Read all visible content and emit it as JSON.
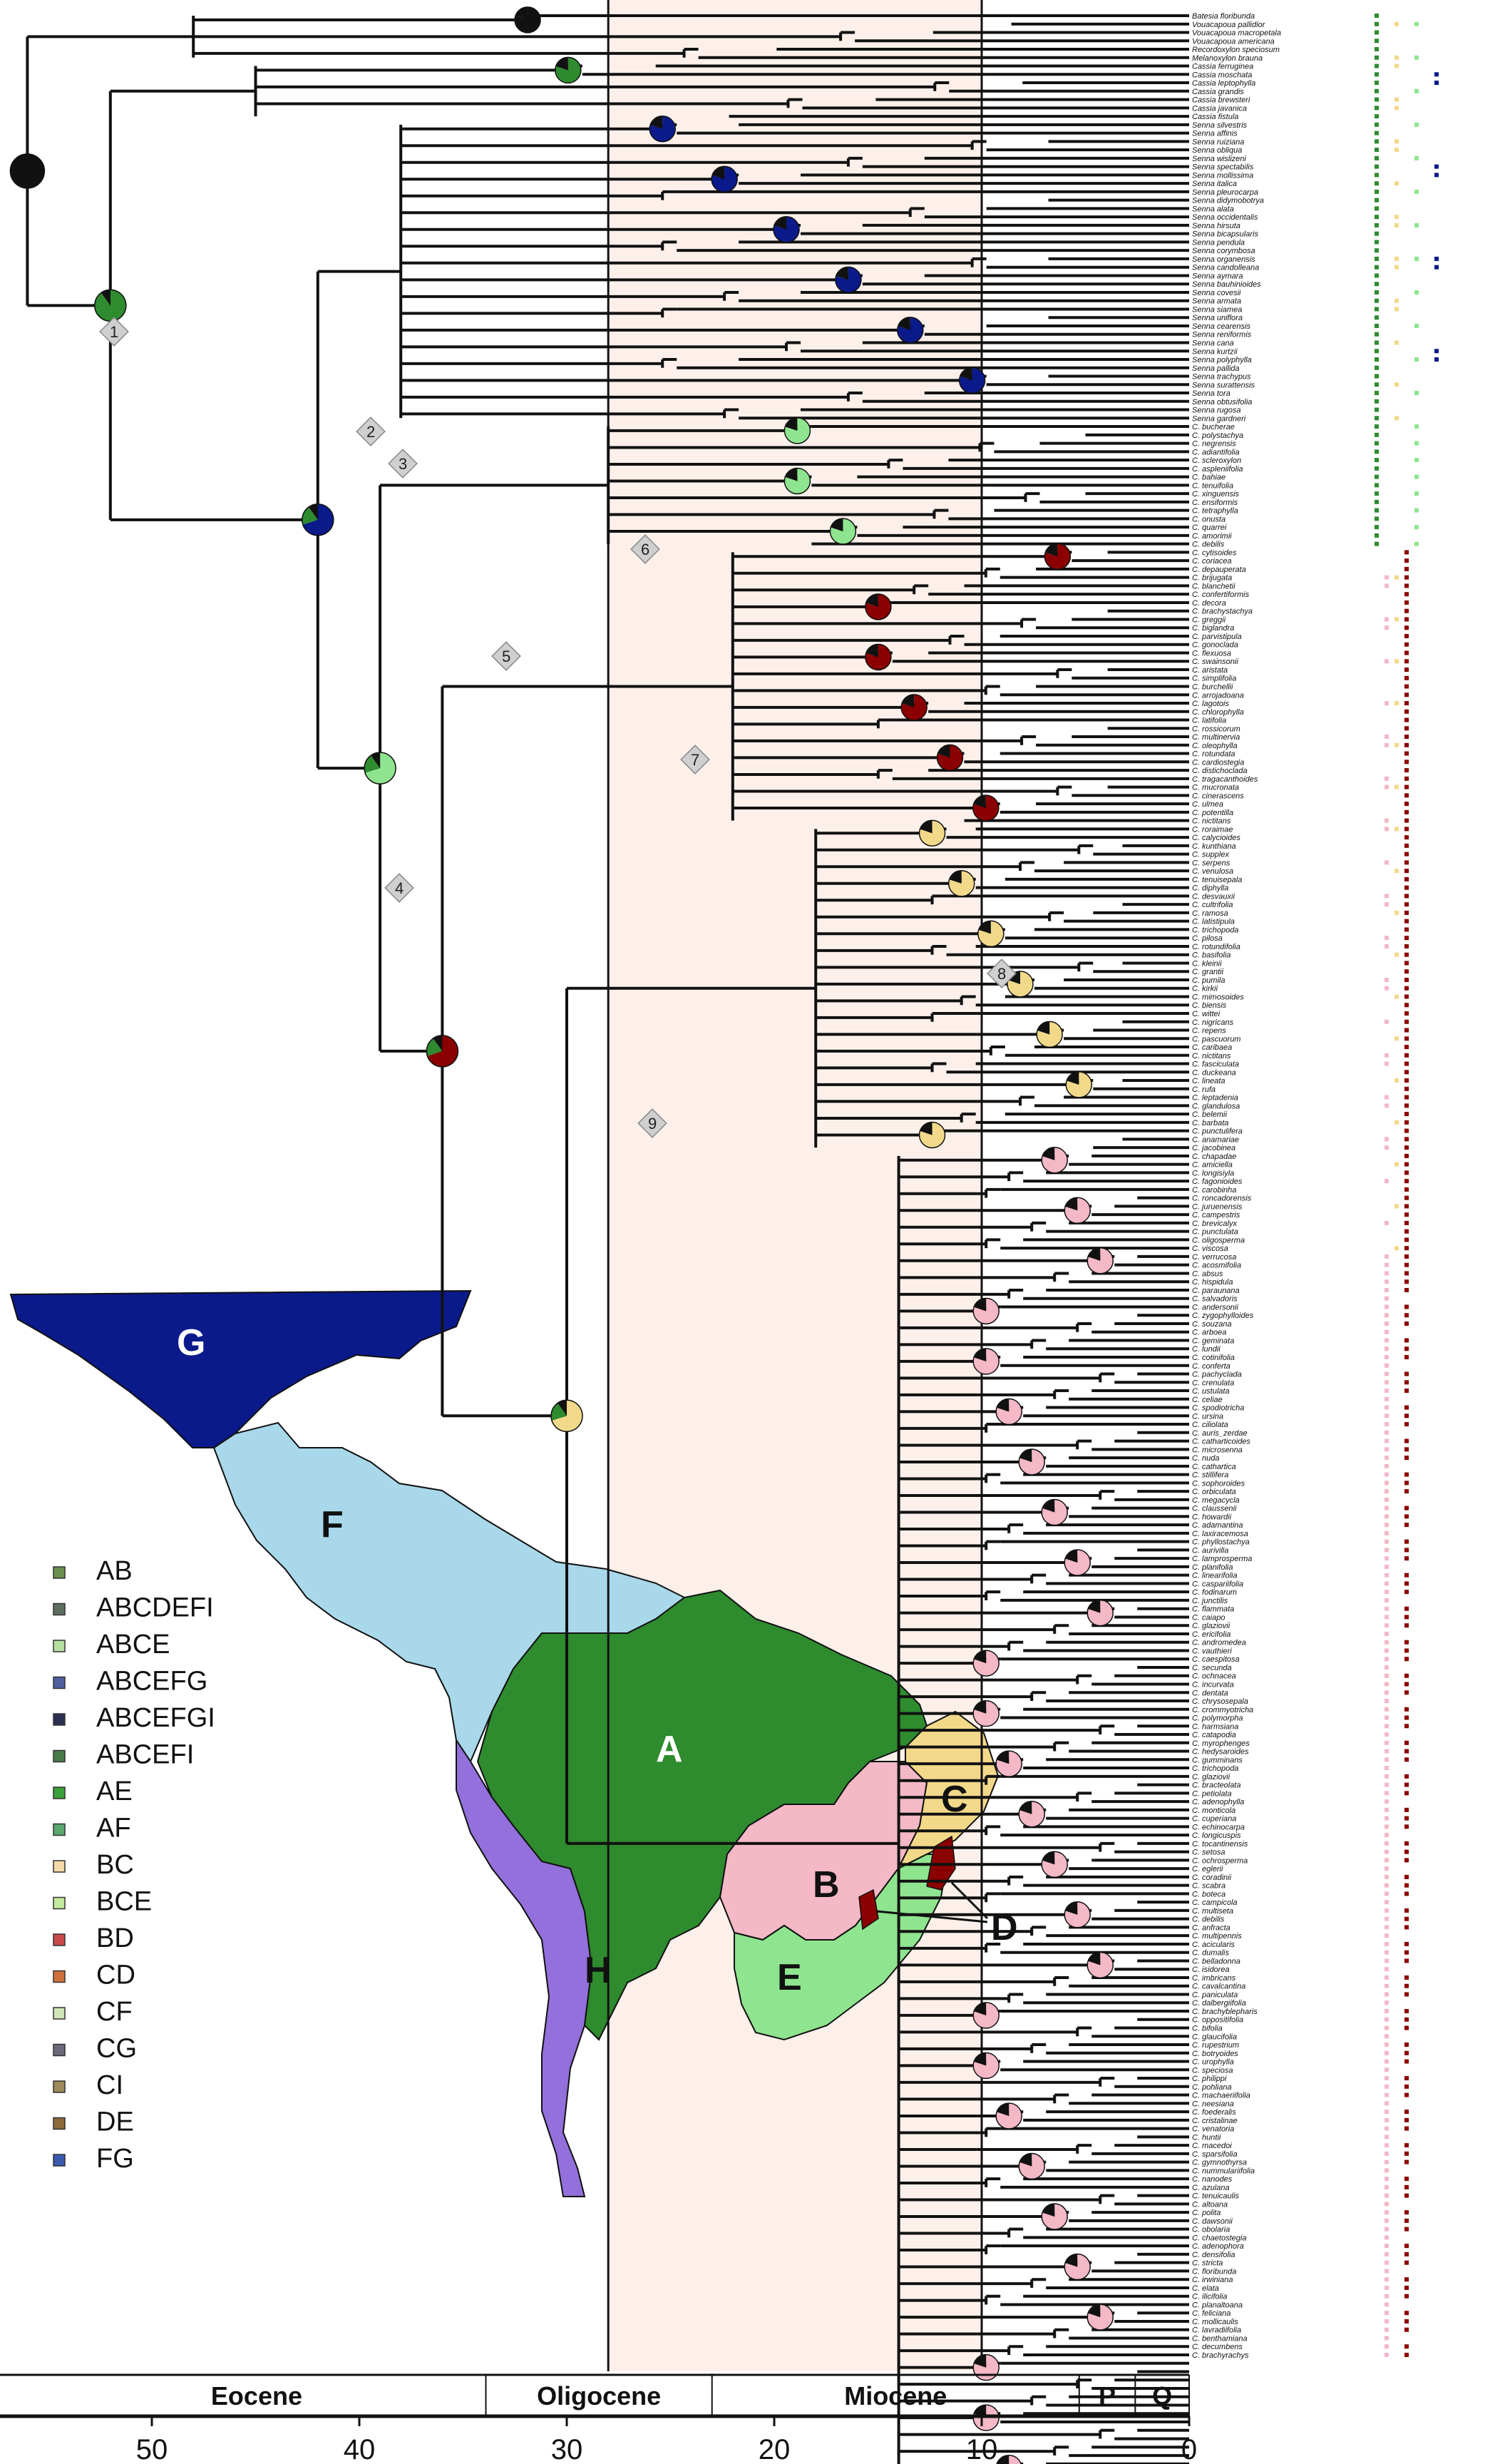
{
  "colors": {
    "A": "#2e8b2e",
    "B": "#f4b8c6",
    "C": "#f2d98a",
    "D": "#8b0000",
    "E": "#8fe58f",
    "F": "#a8d8ea",
    "G": "#0a1a8a",
    "H": "#9370db",
    "grey": "#3a3a3a",
    "black": "#111111",
    "band": "#fdf0ea"
  },
  "time_axis": {
    "ticks": [
      "50",
      "40",
      "30",
      "20",
      "10",
      "0"
    ],
    "epochs": [
      "Eocene",
      "Oligocene",
      "Miocene",
      "P",
      "Q"
    ]
  },
  "node_labels": [
    "1",
    "2",
    "3",
    "4",
    "5",
    "6",
    "7",
    "8",
    "9"
  ],
  "map": {
    "regions": [
      "A",
      "B",
      "C",
      "D",
      "E",
      "F",
      "G",
      "H"
    ]
  },
  "legend": [
    {
      "label": "AB",
      "color": "#6b8f4e"
    },
    {
      "label": "ABCDEFI",
      "color": "#5e6e5e"
    },
    {
      "label": "ABCE",
      "color": "#b6e0a0"
    },
    {
      "label": "ABCEFG",
      "color": "#4f5fa0"
    },
    {
      "label": "ABCEFGI",
      "color": "#2a3050"
    },
    {
      "label": "ABCEFI",
      "color": "#4a7a4a"
    },
    {
      "label": "AE",
      "color": "#3aa03a"
    },
    {
      "label": "AF",
      "color": "#5aa870"
    },
    {
      "label": "BC",
      "color": "#f6d9a8"
    },
    {
      "label": "BCE",
      "color": "#c2ea9a"
    },
    {
      "label": "BD",
      "color": "#c84a4a"
    },
    {
      "label": "CD",
      "color": "#d0703a"
    },
    {
      "label": "CF",
      "color": "#cfe6b8"
    },
    {
      "label": "CG",
      "color": "#6a6a7a"
    },
    {
      "label": "CI",
      "color": "#9c8a5a"
    },
    {
      "label": "DE",
      "color": "#8a6a3a"
    },
    {
      "label": "FG",
      "color": "#3a5ab0"
    }
  ],
  "tips": [
    "Batesia floribunda",
    "Vouacapoua pallidior",
    "Vouacapoua macropetala",
    "Vouacapoua americana",
    "Recordoxylon speciosum",
    "Melanoxylon brauna",
    "Cassia ferruginea",
    "Cassia moschata",
    "Cassia leptophylla",
    "Cassia grandis",
    "Cassia brewsteri",
    "Cassia javanica",
    "Cassia fistula",
    "Senna silvestris",
    "Senna affinis",
    "Senna ruiziana",
    "Senna obliqua",
    "Senna wislizeni",
    "Senna spectabilis",
    "Senna mollissima",
    "Senna italica",
    "Senna pleurocarpa",
    "Senna didymobotrya",
    "Senna alata",
    "Senna occidentalis",
    "Senna hirsuta",
    "Senna bicapsularis",
    "Senna pendula",
    "Senna corymbosa",
    "Senna organensis",
    "Senna candolleana",
    "Senna aymara",
    "Senna bauhinioides",
    "Senna covesii",
    "Senna armata",
    "Senna siamea",
    "Senna uniflora",
    "Senna cearensis",
    "Senna reniformis",
    "Senna cana",
    "Senna kurtzii",
    "Senna polyphylla",
    "Senna pallida",
    "Senna trachypus",
    "Senna surattensis",
    "Senna tora",
    "Senna obtusifolia",
    "Senna rugosa",
    "Senna gardneri",
    "C. bucherae",
    "C. polystachya",
    "C. negrensis",
    "C. adiantifolia",
    "C. scleroxylon",
    "C. aspleniifolia",
    "C. bahiae",
    "C. tenuifolia",
    "C. xinguensis",
    "C. ensiformis",
    "C. tetraphylla",
    "C. onusta",
    "C. quarrei",
    "C. amorimii",
    "C. debilis",
    "C. cytisoides",
    "C. coriacea",
    "C. depauperata",
    "C. brijugata",
    "C. blanchetii",
    "C. confertiformis",
    "C. decora",
    "C. brachystachya",
    "C. greggii",
    "C. biglandra",
    "C. parvistipula",
    "C. gonoclada",
    "C. flexuosa",
    "C. swainsonii",
    "C. aristata",
    "C. simplifolia",
    "C. burchellii",
    "C. arrojadoana",
    "C. lagotois",
    "C. chlorophylla",
    "C. latifolia",
    "C. rossicorum",
    "C. multinervia",
    "C. oleophylla",
    "C. rotundata",
    "C. cardiostegia",
    "C. distichoclada",
    "C. tragacanthoides",
    "C. mucronata",
    "C. cinerascens",
    "C. ulmea",
    "C. potentilla",
    "C. nictitans",
    "C. roraimae",
    "C. calycioides",
    "C. kunthiana",
    "C. supplex",
    "C. serpens",
    "C. venulosa",
    "C. tenuisepala",
    "C. diphylla",
    "C. desvauxii",
    "C. cultrifolia",
    "C. ramosa",
    "C. latistipula",
    "C. trichopoda",
    "C. pilosa",
    "C. rotundifolia",
    "C. basifolia",
    "C. kleinii",
    "C. grantii",
    "C. pumila",
    "C. kirkii",
    "C. mimosoides",
    "C. biensis",
    "C. wittei",
    "C. nigricans",
    "C. repens",
    "C. pascuorum",
    "C. caribaea",
    "C. nictitans",
    "C. fasciculata",
    "C. duckeana",
    "C. lineata",
    "C. rufa",
    "C. leptadenia",
    "C. glandulosa",
    "C. belemii",
    "C. barbata",
    "C. punctulifera",
    "C. anamariae",
    "C. jacobinea",
    "C. chapadae",
    "C. amiciella",
    "C. longisiyla",
    "C. fagonioides",
    "C. carobinha",
    "C. roncadorensis",
    "C. juruenensis",
    "C. campestris",
    "C. brevicalyx",
    "C. punctulata",
    "C. oligosperma",
    "C. viscosa",
    "C. verrucosa",
    "C. acosmifolia",
    "C. absus",
    "C. hispidula",
    "C. paraunana",
    "C. salvadoris",
    "C. andersonii",
    "C. zygophylloides",
    "C. souzana",
    "C. arboea",
    "C. geminata",
    "C. lundii",
    "C. cotinifolia",
    "C. conferta",
    "C. pachyclada",
    "C. crenulata",
    "C. ustulata",
    "C. celiae",
    "C. spodiotricha",
    "C. ursina",
    "C. ciliolata",
    "C. auris_zerdae",
    "C. catharticoides",
    "C. microsenna",
    "C. nuda",
    "C. cathartica",
    "C. stillifera",
    "C. sophoroides",
    "C. orbiculata",
    "C. megacycla",
    "C. claussenii",
    "C. howardii",
    "C. adamantina",
    "C. laxiracemosa",
    "C. phyllostachya",
    "C. aurivilla",
    "C. lamprosperma",
    "C. planifolia",
    "C. linearifolia",
    "C. caspariifolia",
    "C. fodinarum",
    "C. junctilis",
    "C. flammata",
    "C. caiapo",
    "C. glaziovii",
    "C. ericifolia",
    "C. andromedea",
    "C. vauthieri",
    "C. caespitosa",
    "C. secunda",
    "C. ochnacea",
    "C. incurvata",
    "C. dentata",
    "C. chrysosepala",
    "C. crommyotricha",
    "C. polymorpha",
    "C. harmsiana",
    "C. catapodia",
    "C. myrophenges",
    "C. hedysaroides",
    "C. gumminans",
    "C. trichopoda",
    "C. glaziovii",
    "C. bracteolata",
    "C. petiolata",
    "C. adenophylla",
    "C. monticola",
    "C. cuperiana",
    "C. echinocarpa",
    "C. longicuspis",
    "C. tocantinensis",
    "C. setosa",
    "C. ochrosperma",
    "C. eglerii",
    "C. coradinii",
    "C. scabra",
    "C. boteca",
    "C. campicola",
    "C. multiseta",
    "C. debilis",
    "C. anfracta",
    "C. multipennis",
    "C. acicularis",
    "C. dumalis",
    "C. belladonna",
    "C. isidorea",
    "C. imbricans",
    "C. cavalcantina",
    "C. paniculata",
    "C. dalbergiifolia",
    "C. brachyblepharis",
    "C. oppositifolia",
    "C. bifolia",
    "C. glaucifolia",
    "C. rupestrium",
    "C. botryoides",
    "C. urophylla",
    "C. speciosa",
    "C. philippi",
    "C. pohliana",
    "C. machaeriifolia",
    "C. neesiana",
    "C. foederalis",
    "C. cristalinae",
    "C. venatoria",
    "C. huntii",
    "C. macedoi",
    "C. sparsifolia",
    "C. gymnothyrsa",
    "C. nummulariifolia",
    "C. nanodes",
    "C. azulana",
    "C. tenuicaulis",
    "C. altoana",
    "C. polita",
    "C. dawsonii",
    "C. obolaria",
    "C. chaetostegia",
    "C. adenophora",
    "C. densifolia",
    "C. stricta",
    "C. floribunda",
    "C. irwiniana",
    "C. elata",
    "C. ilicifolia",
    "C. planaltoana",
    "C. feliciana",
    "C. mollicaulis",
    "C. lavradiifolia",
    "C. benthamiana",
    "C. decumbens",
    "C. brachyrachys"
  ]
}
